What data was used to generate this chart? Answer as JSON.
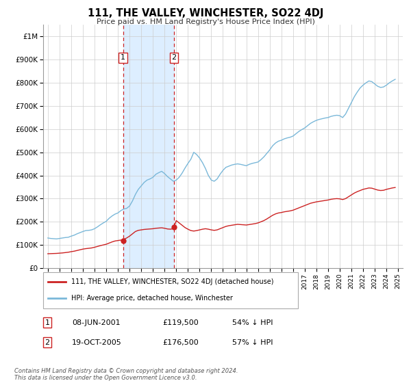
{
  "title": "111, THE VALLEY, WINCHESTER, SO22 4DJ",
  "subtitle": "Price paid vs. HM Land Registry's House Price Index (HPI)",
  "hpi_color": "#7ab8d9",
  "price_color": "#cc2222",
  "shaded_color": "#ddeeff",
  "marker_color": "#cc2222",
  "sale1_date_x": 2001.44,
  "sale1_price": 119500,
  "sale1_label": "1",
  "sale2_date_x": 2005.8,
  "sale2_price": 176500,
  "sale2_label": "2",
  "ylim": [
    0,
    1050000
  ],
  "xlim_left": 1994.6,
  "xlim_right": 2025.4,
  "yticks": [
    0,
    100000,
    200000,
    300000,
    400000,
    500000,
    600000,
    700000,
    800000,
    900000,
    1000000
  ],
  "ytick_labels": [
    "£0",
    "£100K",
    "£200K",
    "£300K",
    "£400K",
    "£500K",
    "£600K",
    "£700K",
    "£800K",
    "£900K",
    "£1M"
  ],
  "xticks": [
    1995,
    1996,
    1997,
    1998,
    1999,
    2000,
    2001,
    2002,
    2003,
    2004,
    2005,
    2006,
    2007,
    2008,
    2009,
    2010,
    2011,
    2012,
    2013,
    2014,
    2015,
    2016,
    2017,
    2018,
    2019,
    2020,
    2021,
    2022,
    2023,
    2024,
    2025
  ],
  "legend_label_price": "111, THE VALLEY, WINCHESTER, SO22 4DJ (detached house)",
  "legend_label_hpi": "HPI: Average price, detached house, Winchester",
  "table_row1": [
    "1",
    "08-JUN-2001",
    "£119,500",
    "54% ↓ HPI"
  ],
  "table_row2": [
    "2",
    "19-OCT-2005",
    "£176,500",
    "57% ↓ HPI"
  ],
  "footer": "Contains HM Land Registry data © Crown copyright and database right 2024.\nThis data is licensed under the Open Government Licence v3.0.",
  "hpi_data": [
    [
      1995.0,
      130000
    ],
    [
      1995.25,
      128000
    ],
    [
      1995.5,
      127000
    ],
    [
      1995.75,
      126000
    ],
    [
      1996.0,
      128000
    ],
    [
      1996.25,
      130000
    ],
    [
      1996.5,
      132000
    ],
    [
      1996.75,
      133000
    ],
    [
      1997.0,
      138000
    ],
    [
      1997.25,
      142000
    ],
    [
      1997.5,
      148000
    ],
    [
      1997.75,
      153000
    ],
    [
      1998.0,
      158000
    ],
    [
      1998.25,
      162000
    ],
    [
      1998.5,
      163000
    ],
    [
      1998.75,
      165000
    ],
    [
      1999.0,
      170000
    ],
    [
      1999.25,
      178000
    ],
    [
      1999.5,
      187000
    ],
    [
      1999.75,
      195000
    ],
    [
      2000.0,
      202000
    ],
    [
      2000.25,
      215000
    ],
    [
      2000.5,
      225000
    ],
    [
      2000.75,
      233000
    ],
    [
      2001.0,
      238000
    ],
    [
      2001.25,
      248000
    ],
    [
      2001.5,
      255000
    ],
    [
      2001.75,
      258000
    ],
    [
      2002.0,
      268000
    ],
    [
      2002.25,
      290000
    ],
    [
      2002.5,
      318000
    ],
    [
      2002.75,
      340000
    ],
    [
      2003.0,
      355000
    ],
    [
      2003.25,
      370000
    ],
    [
      2003.5,
      380000
    ],
    [
      2003.75,
      385000
    ],
    [
      2004.0,
      392000
    ],
    [
      2004.25,
      405000
    ],
    [
      2004.5,
      412000
    ],
    [
      2004.75,
      418000
    ],
    [
      2005.0,
      408000
    ],
    [
      2005.25,
      395000
    ],
    [
      2005.5,
      385000
    ],
    [
      2005.75,
      375000
    ],
    [
      2006.0,
      380000
    ],
    [
      2006.25,
      392000
    ],
    [
      2006.5,
      410000
    ],
    [
      2006.75,
      432000
    ],
    [
      2007.0,
      452000
    ],
    [
      2007.25,
      470000
    ],
    [
      2007.5,
      500000
    ],
    [
      2007.75,
      490000
    ],
    [
      2008.0,
      475000
    ],
    [
      2008.25,
      455000
    ],
    [
      2008.5,
      430000
    ],
    [
      2008.75,
      400000
    ],
    [
      2009.0,
      380000
    ],
    [
      2009.25,
      375000
    ],
    [
      2009.5,
      385000
    ],
    [
      2009.75,
      405000
    ],
    [
      2010.0,
      422000
    ],
    [
      2010.25,
      435000
    ],
    [
      2010.5,
      440000
    ],
    [
      2010.75,
      445000
    ],
    [
      2011.0,
      448000
    ],
    [
      2011.25,
      450000
    ],
    [
      2011.5,
      448000
    ],
    [
      2011.75,
      445000
    ],
    [
      2012.0,
      442000
    ],
    [
      2012.25,
      448000
    ],
    [
      2012.5,
      452000
    ],
    [
      2012.75,
      455000
    ],
    [
      2013.0,
      458000
    ],
    [
      2013.25,
      468000
    ],
    [
      2013.5,
      480000
    ],
    [
      2013.75,
      495000
    ],
    [
      2014.0,
      510000
    ],
    [
      2014.25,
      528000
    ],
    [
      2014.5,
      540000
    ],
    [
      2014.75,
      548000
    ],
    [
      2015.0,
      552000
    ],
    [
      2015.25,
      558000
    ],
    [
      2015.5,
      562000
    ],
    [
      2015.75,
      565000
    ],
    [
      2016.0,
      570000
    ],
    [
      2016.25,
      580000
    ],
    [
      2016.5,
      590000
    ],
    [
      2016.75,
      598000
    ],
    [
      2017.0,
      605000
    ],
    [
      2017.25,
      615000
    ],
    [
      2017.5,
      625000
    ],
    [
      2017.75,
      632000
    ],
    [
      2018.0,
      638000
    ],
    [
      2018.25,
      642000
    ],
    [
      2018.5,
      645000
    ],
    [
      2018.75,
      648000
    ],
    [
      2019.0,
      650000
    ],
    [
      2019.25,
      655000
    ],
    [
      2019.5,
      658000
    ],
    [
      2019.75,
      660000
    ],
    [
      2020.0,
      658000
    ],
    [
      2020.25,
      650000
    ],
    [
      2020.5,
      665000
    ],
    [
      2020.75,
      690000
    ],
    [
      2021.0,
      715000
    ],
    [
      2021.25,
      740000
    ],
    [
      2021.5,
      760000
    ],
    [
      2021.75,
      778000
    ],
    [
      2022.0,
      790000
    ],
    [
      2022.25,
      800000
    ],
    [
      2022.5,
      808000
    ],
    [
      2022.75,
      805000
    ],
    [
      2023.0,
      795000
    ],
    [
      2023.25,
      785000
    ],
    [
      2023.5,
      780000
    ],
    [
      2023.75,
      782000
    ],
    [
      2024.0,
      790000
    ],
    [
      2024.25,
      800000
    ],
    [
      2024.5,
      808000
    ],
    [
      2024.75,
      815000
    ]
  ],
  "price_data": [
    [
      1995.0,
      62000
    ],
    [
      1995.25,
      62500
    ],
    [
      1995.5,
      63000
    ],
    [
      1995.75,
      63500
    ],
    [
      1996.0,
      64500
    ],
    [
      1996.25,
      65500
    ],
    [
      1996.5,
      67000
    ],
    [
      1996.75,
      68500
    ],
    [
      1997.0,
      71000
    ],
    [
      1997.25,
      73000
    ],
    [
      1997.5,
      76000
    ],
    [
      1997.75,
      79000
    ],
    [
      1998.0,
      82000
    ],
    [
      1998.25,
      84000
    ],
    [
      1998.5,
      85500
    ],
    [
      1998.75,
      87000
    ],
    [
      1999.0,
      90000
    ],
    [
      1999.25,
      93500
    ],
    [
      1999.5,
      97000
    ],
    [
      1999.75,
      100000
    ],
    [
      2000.0,
      103000
    ],
    [
      2000.25,
      108000
    ],
    [
      2000.5,
      113000
    ],
    [
      2000.75,
      117000
    ],
    [
      2001.0,
      119000
    ],
    [
      2001.25,
      121000
    ],
    [
      2001.44,
      119500
    ],
    [
      2001.5,
      124000
    ],
    [
      2001.75,
      130000
    ],
    [
      2002.0,
      138000
    ],
    [
      2002.25,
      148000
    ],
    [
      2002.5,
      158000
    ],
    [
      2002.75,
      163000
    ],
    [
      2003.0,
      165000
    ],
    [
      2003.25,
      167000
    ],
    [
      2003.5,
      168000
    ],
    [
      2003.75,
      169000
    ],
    [
      2004.0,
      170000
    ],
    [
      2004.25,
      172000
    ],
    [
      2004.5,
      173000
    ],
    [
      2004.75,
      174000
    ],
    [
      2005.0,
      172000
    ],
    [
      2005.25,
      169000
    ],
    [
      2005.5,
      168000
    ],
    [
      2005.75,
      170000
    ],
    [
      2005.8,
      176500
    ],
    [
      2006.0,
      205000
    ],
    [
      2006.25,
      195000
    ],
    [
      2006.5,
      185000
    ],
    [
      2006.75,
      175000
    ],
    [
      2007.0,
      168000
    ],
    [
      2007.25,
      162000
    ],
    [
      2007.5,
      160000
    ],
    [
      2007.75,
      162000
    ],
    [
      2008.0,
      165000
    ],
    [
      2008.25,
      168000
    ],
    [
      2008.5,
      170000
    ],
    [
      2008.75,
      168000
    ],
    [
      2009.0,
      165000
    ],
    [
      2009.25,
      163000
    ],
    [
      2009.5,
      165000
    ],
    [
      2009.75,
      170000
    ],
    [
      2010.0,
      175000
    ],
    [
      2010.25,
      180000
    ],
    [
      2010.5,
      183000
    ],
    [
      2010.75,
      185000
    ],
    [
      2011.0,
      187000
    ],
    [
      2011.25,
      189000
    ],
    [
      2011.5,
      188000
    ],
    [
      2011.75,
      187000
    ],
    [
      2012.0,
      186000
    ],
    [
      2012.25,
      188000
    ],
    [
      2012.5,
      190000
    ],
    [
      2012.75,
      192000
    ],
    [
      2013.0,
      195000
    ],
    [
      2013.25,
      200000
    ],
    [
      2013.5,
      205000
    ],
    [
      2013.75,
      212000
    ],
    [
      2014.0,
      220000
    ],
    [
      2014.25,
      228000
    ],
    [
      2014.5,
      234000
    ],
    [
      2014.75,
      238000
    ],
    [
      2015.0,
      240000
    ],
    [
      2015.25,
      243000
    ],
    [
      2015.5,
      245000
    ],
    [
      2015.75,
      247000
    ],
    [
      2016.0,
      250000
    ],
    [
      2016.25,
      255000
    ],
    [
      2016.5,
      260000
    ],
    [
      2016.75,
      265000
    ],
    [
      2017.0,
      270000
    ],
    [
      2017.25,
      275000
    ],
    [
      2017.5,
      280000
    ],
    [
      2017.75,
      283000
    ],
    [
      2018.0,
      286000
    ],
    [
      2018.25,
      288000
    ],
    [
      2018.5,
      290000
    ],
    [
      2018.75,
      292000
    ],
    [
      2019.0,
      294000
    ],
    [
      2019.25,
      297000
    ],
    [
      2019.5,
      299000
    ],
    [
      2019.75,
      300000
    ],
    [
      2020.0,
      299000
    ],
    [
      2020.25,
      296000
    ],
    [
      2020.5,
      300000
    ],
    [
      2020.75,
      308000
    ],
    [
      2021.0,
      316000
    ],
    [
      2021.25,
      324000
    ],
    [
      2021.5,
      330000
    ],
    [
      2021.75,
      335000
    ],
    [
      2022.0,
      340000
    ],
    [
      2022.25,
      343000
    ],
    [
      2022.5,
      346000
    ],
    [
      2022.75,
      345000
    ],
    [
      2023.0,
      341000
    ],
    [
      2023.25,
      337000
    ],
    [
      2023.5,
      335000
    ],
    [
      2023.75,
      336000
    ],
    [
      2024.0,
      340000
    ],
    [
      2024.25,
      343000
    ],
    [
      2024.5,
      346000
    ],
    [
      2024.75,
      348000
    ]
  ]
}
